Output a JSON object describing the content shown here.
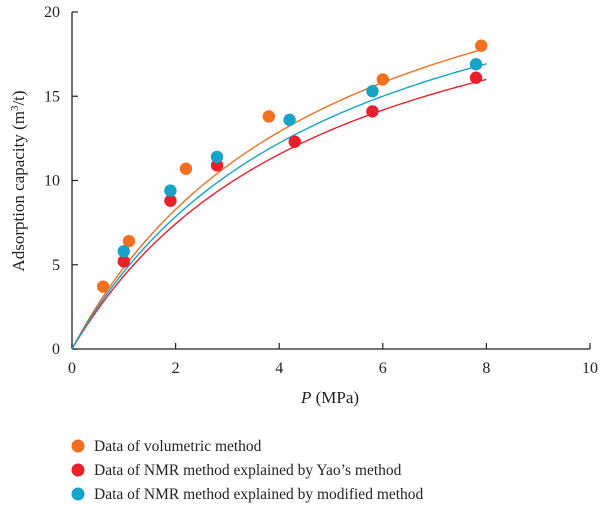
{
  "chart_data": {
    "type": "scatter",
    "xlabel_italic": "P",
    "xlabel_rest": " (MPa)",
    "ylabel_main": "Adsorption capacity (m",
    "ylabel_sup": "3",
    "ylabel_end": "/t)",
    "xlim": [
      0,
      10
    ],
    "ylim": [
      0,
      20
    ],
    "xticks": [
      "0",
      "2",
      "4",
      "6",
      "8",
      "10"
    ],
    "yticks": [
      "0",
      "5",
      "10",
      "15",
      "20"
    ],
    "grid": false,
    "legend_position": "bottom",
    "series": [
      {
        "name": "Data of volumetric method",
        "color": "#f07020",
        "x": [
          0.6,
          1.1,
          2.2,
          3.8,
          6.0,
          7.9
        ],
        "y": [
          3.7,
          6.4,
          10.7,
          13.8,
          16.0,
          18.0
        ],
        "fit": {
          "a": 29.0,
          "b": 0.2
        }
      },
      {
        "name": "Data of NMR method explained by Yao’s method",
        "color": "#e8202a",
        "x": [
          1.0,
          1.9,
          2.8,
          4.3,
          5.8,
          7.8
        ],
        "y": [
          5.2,
          8.8,
          10.9,
          12.3,
          14.1,
          16.1
        ],
        "fit": {
          "a": 26.0,
          "b": 0.2
        }
      },
      {
        "name": "Data of NMR method explained by modified method",
        "color": "#15a3c7",
        "x": [
          1.0,
          1.9,
          2.8,
          4.2,
          5.8,
          7.8
        ],
        "y": [
          5.8,
          9.4,
          11.4,
          13.6,
          15.3,
          16.9
        ],
        "fit": {
          "a": 27.5,
          "b": 0.2
        }
      }
    ]
  }
}
